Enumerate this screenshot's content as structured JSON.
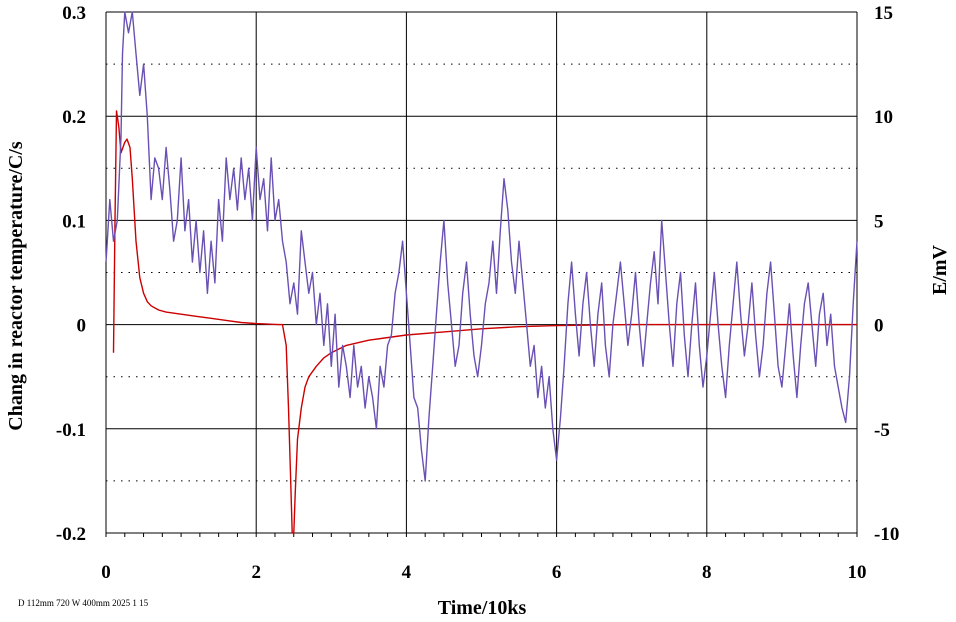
{
  "chart_data": {
    "type": "line",
    "xlabel": "Time/10ks",
    "ylabel_left": "Chang in reactor temperature/C/s",
    "ylabel_right": "E/mV",
    "xlim": [
      0,
      10
    ],
    "ylim_left": [
      -0.2,
      0.3
    ],
    "ylim_right": [
      -10,
      15
    ],
    "x_ticks": [
      "0",
      "2",
      "4",
      "6",
      "8",
      "10"
    ],
    "y_left_ticks": [
      "0.3",
      "0.2",
      "0.1",
      "0",
      "-0.1",
      "-0.2"
    ],
    "y_right_ticks": [
      "15",
      "10",
      "5",
      "0",
      "-5",
      "-10"
    ],
    "grid": true,
    "footnote": "D 112mm 720 W 400mm 2025 1 15",
    "series": [
      {
        "axis": "left",
        "color": "#cc0000",
        "points": [
          [
            0.1,
            -0.027
          ],
          [
            0.12,
            0.1
          ],
          [
            0.14,
            0.205
          ],
          [
            0.17,
            0.19
          ],
          [
            0.2,
            0.165
          ],
          [
            0.25,
            0.175
          ],
          [
            0.28,
            0.178
          ],
          [
            0.32,
            0.17
          ],
          [
            0.35,
            0.14
          ],
          [
            0.4,
            0.08
          ],
          [
            0.45,
            0.045
          ],
          [
            0.5,
            0.03
          ],
          [
            0.55,
            0.022
          ],
          [
            0.6,
            0.018
          ],
          [
            0.7,
            0.014
          ],
          [
            0.8,
            0.012
          ],
          [
            1.0,
            0.01
          ],
          [
            1.2,
            0.008
          ],
          [
            1.4,
            0.006
          ],
          [
            1.6,
            0.004
          ],
          [
            1.8,
            0.002
          ],
          [
            2.0,
            0.001
          ],
          [
            2.3,
            0.0
          ],
          [
            2.35,
            0.0
          ],
          [
            2.4,
            -0.02
          ],
          [
            2.43,
            -0.08
          ],
          [
            2.46,
            -0.15
          ],
          [
            2.48,
            -0.2
          ],
          [
            2.5,
            -0.2
          ],
          [
            2.52,
            -0.16
          ],
          [
            2.55,
            -0.11
          ],
          [
            2.6,
            -0.08
          ],
          [
            2.65,
            -0.06
          ],
          [
            2.7,
            -0.05
          ],
          [
            2.8,
            -0.04
          ],
          [
            2.9,
            -0.032
          ],
          [
            3.0,
            -0.027
          ],
          [
            3.2,
            -0.02
          ],
          [
            3.5,
            -0.015
          ],
          [
            4.0,
            -0.01
          ],
          [
            4.5,
            -0.007
          ],
          [
            5.0,
            -0.004
          ],
          [
            5.5,
            -0.002
          ],
          [
            6.0,
            -0.001
          ],
          [
            7.0,
            0.0
          ],
          [
            10.0,
            0.0
          ]
        ]
      },
      {
        "axis": "right",
        "color": "#6a50b4",
        "points": [
          [
            0.0,
            3.0
          ],
          [
            0.05,
            6.0
          ],
          [
            0.1,
            4.0
          ],
          [
            0.15,
            5.0
          ],
          [
            0.2,
            9.0
          ],
          [
            0.22,
            13.0
          ],
          [
            0.25,
            15.0
          ],
          [
            0.3,
            14.0
          ],
          [
            0.35,
            15.0
          ],
          [
            0.4,
            13.0
          ],
          [
            0.45,
            11.0
          ],
          [
            0.5,
            12.5
          ],
          [
            0.55,
            10.0
          ],
          [
            0.6,
            6.0
          ],
          [
            0.65,
            8.0
          ],
          [
            0.7,
            7.5
          ],
          [
            0.75,
            6.0
          ],
          [
            0.8,
            8.5
          ],
          [
            0.85,
            6.5
          ],
          [
            0.9,
            4.0
          ],
          [
            0.95,
            5.0
          ],
          [
            1.0,
            8.0
          ],
          [
            1.05,
            4.5
          ],
          [
            1.1,
            6.0
          ],
          [
            1.15,
            3.0
          ],
          [
            1.2,
            5.0
          ],
          [
            1.25,
            2.5
          ],
          [
            1.3,
            4.5
          ],
          [
            1.35,
            1.5
          ],
          [
            1.4,
            4.0
          ],
          [
            1.45,
            2.0
          ],
          [
            1.5,
            6.0
          ],
          [
            1.55,
            4.0
          ],
          [
            1.6,
            8.0
          ],
          [
            1.65,
            6.0
          ],
          [
            1.7,
            7.5
          ],
          [
            1.75,
            5.5
          ],
          [
            1.8,
            8.0
          ],
          [
            1.85,
            6.0
          ],
          [
            1.9,
            7.5
          ],
          [
            1.95,
            5.0
          ],
          [
            2.0,
            8.5
          ],
          [
            2.05,
            6.0
          ],
          [
            2.1,
            7.0
          ],
          [
            2.15,
            4.5
          ],
          [
            2.2,
            8.0
          ],
          [
            2.25,
            5.0
          ],
          [
            2.3,
            6.0
          ],
          [
            2.35,
            4.0
          ],
          [
            2.4,
            3.0
          ],
          [
            2.45,
            1.0
          ],
          [
            2.5,
            2.0
          ],
          [
            2.55,
            0.5
          ],
          [
            2.6,
            4.5
          ],
          [
            2.65,
            3.0
          ],
          [
            2.7,
            1.5
          ],
          [
            2.75,
            2.5
          ],
          [
            2.8,
            0.0
          ],
          [
            2.85,
            1.5
          ],
          [
            2.9,
            -1.0
          ],
          [
            2.95,
            1.0
          ],
          [
            3.0,
            -2.0
          ],
          [
            3.05,
            0.5
          ],
          [
            3.1,
            -3.0
          ],
          [
            3.15,
            -1.0
          ],
          [
            3.2,
            -2.0
          ],
          [
            3.25,
            -3.5
          ],
          [
            3.3,
            -1.0
          ],
          [
            3.35,
            -3.0
          ],
          [
            3.4,
            -2.0
          ],
          [
            3.45,
            -4.0
          ],
          [
            3.5,
            -2.5
          ],
          [
            3.55,
            -3.5
          ],
          [
            3.6,
            -5.0
          ],
          [
            3.65,
            -2.0
          ],
          [
            3.7,
            -3.0
          ],
          [
            3.75,
            -1.0
          ],
          [
            3.8,
            -0.5
          ],
          [
            3.85,
            1.5
          ],
          [
            3.9,
            2.5
          ],
          [
            3.95,
            4.0
          ],
          [
            4.0,
            1.5
          ],
          [
            4.05,
            -1.0
          ],
          [
            4.1,
            -3.5
          ],
          [
            4.15,
            -4.0
          ],
          [
            4.2,
            -6.0
          ],
          [
            4.25,
            -7.5
          ],
          [
            4.3,
            -4.5
          ],
          [
            4.35,
            -2.0
          ],
          [
            4.4,
            0.5
          ],
          [
            4.45,
            3.0
          ],
          [
            4.5,
            5.0
          ],
          [
            4.55,
            2.0
          ],
          [
            4.6,
            0.0
          ],
          [
            4.65,
            -2.0
          ],
          [
            4.7,
            -1.0
          ],
          [
            4.75,
            1.5
          ],
          [
            4.8,
            3.0
          ],
          [
            4.85,
            0.5
          ],
          [
            4.9,
            -1.5
          ],
          [
            4.95,
            -2.5
          ],
          [
            5.0,
            -1.0
          ],
          [
            5.05,
            1.0
          ],
          [
            5.1,
            2.0
          ],
          [
            5.15,
            4.0
          ],
          [
            5.2,
            1.5
          ],
          [
            5.25,
            4.5
          ],
          [
            5.3,
            7.0
          ],
          [
            5.35,
            5.5
          ],
          [
            5.4,
            3.0
          ],
          [
            5.45,
            1.5
          ],
          [
            5.5,
            4.0
          ],
          [
            5.55,
            2.0
          ],
          [
            5.6,
            0.0
          ],
          [
            5.65,
            -2.0
          ],
          [
            5.7,
            -1.0
          ],
          [
            5.75,
            -3.5
          ],
          [
            5.8,
            -2.0
          ],
          [
            5.85,
            -4.0
          ],
          [
            5.9,
            -2.5
          ],
          [
            5.95,
            -5.0
          ],
          [
            6.0,
            -6.5
          ],
          [
            6.05,
            -4.5
          ],
          [
            6.1,
            -2.0
          ],
          [
            6.15,
            1.0
          ],
          [
            6.2,
            3.0
          ],
          [
            6.25,
            0.5
          ],
          [
            6.3,
            -1.5
          ],
          [
            6.35,
            1.0
          ],
          [
            6.4,
            2.5
          ],
          [
            6.45,
            0.0
          ],
          [
            6.5,
            -2.0
          ],
          [
            6.55,
            0.5
          ],
          [
            6.6,
            2.0
          ],
          [
            6.65,
            -1.0
          ],
          [
            6.7,
            -2.5
          ],
          [
            6.75,
            0.0
          ],
          [
            6.8,
            1.5
          ],
          [
            6.85,
            3.0
          ],
          [
            6.9,
            1.0
          ],
          [
            6.95,
            -1.0
          ],
          [
            7.0,
            0.5
          ],
          [
            7.05,
            2.5
          ],
          [
            7.1,
            0.0
          ],
          [
            7.15,
            -2.0
          ],
          [
            7.2,
            0.0
          ],
          [
            7.25,
            2.0
          ],
          [
            7.3,
            3.5
          ],
          [
            7.35,
            1.0
          ],
          [
            7.4,
            5.0
          ],
          [
            7.45,
            2.5
          ],
          [
            7.5,
            0.0
          ],
          [
            7.55,
            -2.0
          ],
          [
            7.6,
            1.0
          ],
          [
            7.65,
            2.5
          ],
          [
            7.7,
            -0.5
          ],
          [
            7.75,
            -2.5
          ],
          [
            7.8,
            0.0
          ],
          [
            7.85,
            2.0
          ],
          [
            7.9,
            -1.0
          ],
          [
            7.95,
            -3.0
          ],
          [
            8.0,
            -1.5
          ],
          [
            8.05,
            0.5
          ],
          [
            8.1,
            2.5
          ],
          [
            8.15,
            0.0
          ],
          [
            8.2,
            -2.0
          ],
          [
            8.25,
            -3.5
          ],
          [
            8.3,
            -1.0
          ],
          [
            8.35,
            1.0
          ],
          [
            8.4,
            3.0
          ],
          [
            8.45,
            0.5
          ],
          [
            8.5,
            -1.5
          ],
          [
            8.55,
            0.0
          ],
          [
            8.6,
            2.0
          ],
          [
            8.65,
            -0.5
          ],
          [
            8.7,
            -2.5
          ],
          [
            8.75,
            -1.0
          ],
          [
            8.8,
            1.5
          ],
          [
            8.85,
            3.0
          ],
          [
            8.9,
            0.5
          ],
          [
            8.95,
            -2.0
          ],
          [
            9.0,
            -3.0
          ],
          [
            9.05,
            -1.0
          ],
          [
            9.1,
            1.0
          ],
          [
            9.15,
            -1.5
          ],
          [
            9.2,
            -3.5
          ],
          [
            9.25,
            -1.0
          ],
          [
            9.3,
            1.0
          ],
          [
            9.35,
            2.0
          ],
          [
            9.4,
            0.0
          ],
          [
            9.45,
            -2.0
          ],
          [
            9.5,
            0.5
          ],
          [
            9.55,
            1.5
          ],
          [
            9.6,
            -1.0
          ],
          [
            9.65,
            0.5
          ],
          [
            9.7,
            -2.0
          ],
          [
            9.75,
            -3.0
          ],
          [
            9.8,
            -4.0
          ],
          [
            9.85,
            -4.7
          ],
          [
            9.9,
            -2.5
          ],
          [
            9.95,
            1.0
          ],
          [
            10.0,
            4.0
          ]
        ]
      }
    ]
  }
}
